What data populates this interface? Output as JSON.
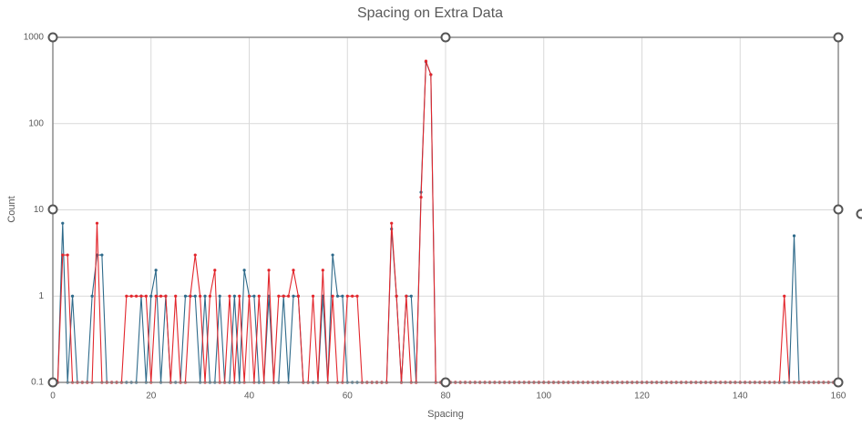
{
  "chart_data": {
    "type": "line",
    "title": "Spacing on Extra Data",
    "x_label": "Spacing",
    "y_label": "Count",
    "log_y": true,
    "grid": true,
    "xlim": [
      0,
      160
    ],
    "xticks": [
      0,
      20,
      40,
      60,
      80,
      100,
      120,
      140,
      160
    ],
    "ylim": [
      0.1,
      1000
    ],
    "yticks": [
      0.1,
      1,
      10,
      100,
      1000
    ],
    "x": [
      0,
      1,
      2,
      3,
      4,
      5,
      6,
      7,
      8,
      9,
      10,
      11,
      12,
      13,
      14,
      15,
      16,
      17,
      18,
      19,
      20,
      21,
      22,
      23,
      24,
      25,
      26,
      27,
      28,
      29,
      30,
      31,
      32,
      33,
      34,
      35,
      36,
      37,
      38,
      39,
      40,
      41,
      42,
      43,
      44,
      45,
      46,
      47,
      48,
      49,
      50,
      51,
      52,
      53,
      54,
      55,
      56,
      57,
      58,
      59,
      60,
      61,
      62,
      63,
      64,
      65,
      66,
      67,
      68,
      69,
      70,
      71,
      72,
      73,
      74,
      75,
      76,
      77,
      78,
      79,
      80,
      81,
      82,
      83,
      84,
      85,
      86,
      87,
      88,
      89,
      90,
      91,
      92,
      93,
      94,
      95,
      96,
      97,
      98,
      99,
      100,
      101,
      102,
      103,
      104,
      105,
      106,
      107,
      108,
      109,
      110,
      111,
      112,
      113,
      114,
      115,
      116,
      117,
      118,
      119,
      120,
      121,
      122,
      123,
      124,
      125,
      126,
      127,
      128,
      129,
      130,
      131,
      132,
      133,
      134,
      135,
      136,
      137,
      138,
      139,
      140,
      141,
      142,
      143,
      144,
      145,
      146,
      147,
      148,
      149,
      150,
      151,
      152,
      153,
      154,
      155,
      156,
      157,
      158,
      159,
      160
    ],
    "series": [
      {
        "color": "#2e6a8a",
        "values": [
          0.1,
          0.1,
          7,
          0.1,
          1,
          0.1,
          0.1,
          0.1,
          1,
          3,
          3,
          0.1,
          0.1,
          0.1,
          0.1,
          0.1,
          0.1,
          0.1,
          1,
          0.1,
          1,
          2,
          0.1,
          1,
          0.1,
          0.1,
          0.1,
          1,
          1,
          1,
          0.1,
          1,
          0.1,
          0.1,
          1,
          0.1,
          0.1,
          1,
          0.1,
          2,
          1,
          1,
          0.1,
          0.1,
          1,
          0.1,
          0.1,
          1,
          0.1,
          1,
          1,
          0.1,
          0.1,
          0.1,
          0.1,
          1,
          0.1,
          3,
          1,
          1,
          0.1,
          0.1,
          0.1,
          0.1,
          0.1,
          0.1,
          0.1,
          0.1,
          0.1,
          6,
          1,
          0.1,
          1,
          1,
          0.1,
          16,
          520,
          370,
          0.1,
          0.1,
          0.1,
          0.1,
          0.1,
          0.1,
          0.1,
          0.1,
          0.1,
          0.1,
          0.1,
          0.1,
          0.1,
          0.1,
          0.1,
          0.1,
          0.1,
          0.1,
          0.1,
          0.1,
          0.1,
          0.1,
          0.1,
          0.1,
          0.1,
          0.1,
          0.1,
          0.1,
          0.1,
          0.1,
          0.1,
          0.1,
          0.1,
          0.1,
          0.1,
          0.1,
          0.1,
          0.1,
          0.1,
          0.1,
          0.1,
          0.1,
          0.1,
          0.1,
          0.1,
          0.1,
          0.1,
          0.1,
          0.1,
          0.1,
          0.1,
          0.1,
          0.1,
          0.1,
          0.1,
          0.1,
          0.1,
          0.1,
          0.1,
          0.1,
          0.1,
          0.1,
          0.1,
          0.1,
          0.1,
          0.1,
          0.1,
          0.1,
          0.1,
          0.1,
          0.1,
          0.1,
          0.1,
          5,
          0.1,
          0.1,
          0.1,
          0.1,
          0.1,
          0.1,
          0.1,
          0.1,
          0.1
        ]
      },
      {
        "color": "#e2262c",
        "values": [
          0.1,
          0.1,
          3,
          3,
          0.1,
          0.1,
          0.1,
          0.1,
          0.1,
          7,
          0.1,
          0.1,
          0.1,
          0.1,
          0.1,
          1,
          1,
          1,
          1,
          1,
          0.1,
          1,
          1,
          1,
          0.1,
          1,
          0.1,
          0.1,
          1,
          3,
          1,
          0.1,
          1,
          2,
          0.1,
          0.1,
          1,
          0.1,
          1,
          0.1,
          1,
          0.1,
          1,
          0.1,
          2,
          0.1,
          1,
          1,
          1,
          2,
          1,
          0.1,
          0.1,
          1,
          0.1,
          2,
          0.1,
          1,
          0.1,
          0.1,
          1,
          1,
          1,
          0.1,
          0.1,
          0.1,
          0.1,
          0.1,
          0.1,
          7,
          1,
          0.1,
          1,
          0.1,
          0.1,
          14,
          530,
          370,
          0.1,
          0.1,
          0.1,
          0.1,
          0.1,
          0.1,
          0.1,
          0.1,
          0.1,
          0.1,
          0.1,
          0.1,
          0.1,
          0.1,
          0.1,
          0.1,
          0.1,
          0.1,
          0.1,
          0.1,
          0.1,
          0.1,
          0.1,
          0.1,
          0.1,
          0.1,
          0.1,
          0.1,
          0.1,
          0.1,
          0.1,
          0.1,
          0.1,
          0.1,
          0.1,
          0.1,
          0.1,
          0.1,
          0.1,
          0.1,
          0.1,
          0.1,
          0.1,
          0.1,
          0.1,
          0.1,
          0.1,
          0.1,
          0.1,
          0.1,
          0.1,
          0.1,
          0.1,
          0.1,
          0.1,
          0.1,
          0.1,
          0.1,
          0.1,
          0.1,
          0.1,
          0.1,
          0.1,
          0.1,
          0.1,
          0.1,
          0.1,
          0.1,
          0.1,
          0.1,
          0.1,
          1,
          0.1,
          0.1,
          0.1,
          0.1,
          0.1,
          0.1,
          0.1,
          0.1,
          0.1,
          0.1,
          0.1
        ]
      }
    ]
  }
}
